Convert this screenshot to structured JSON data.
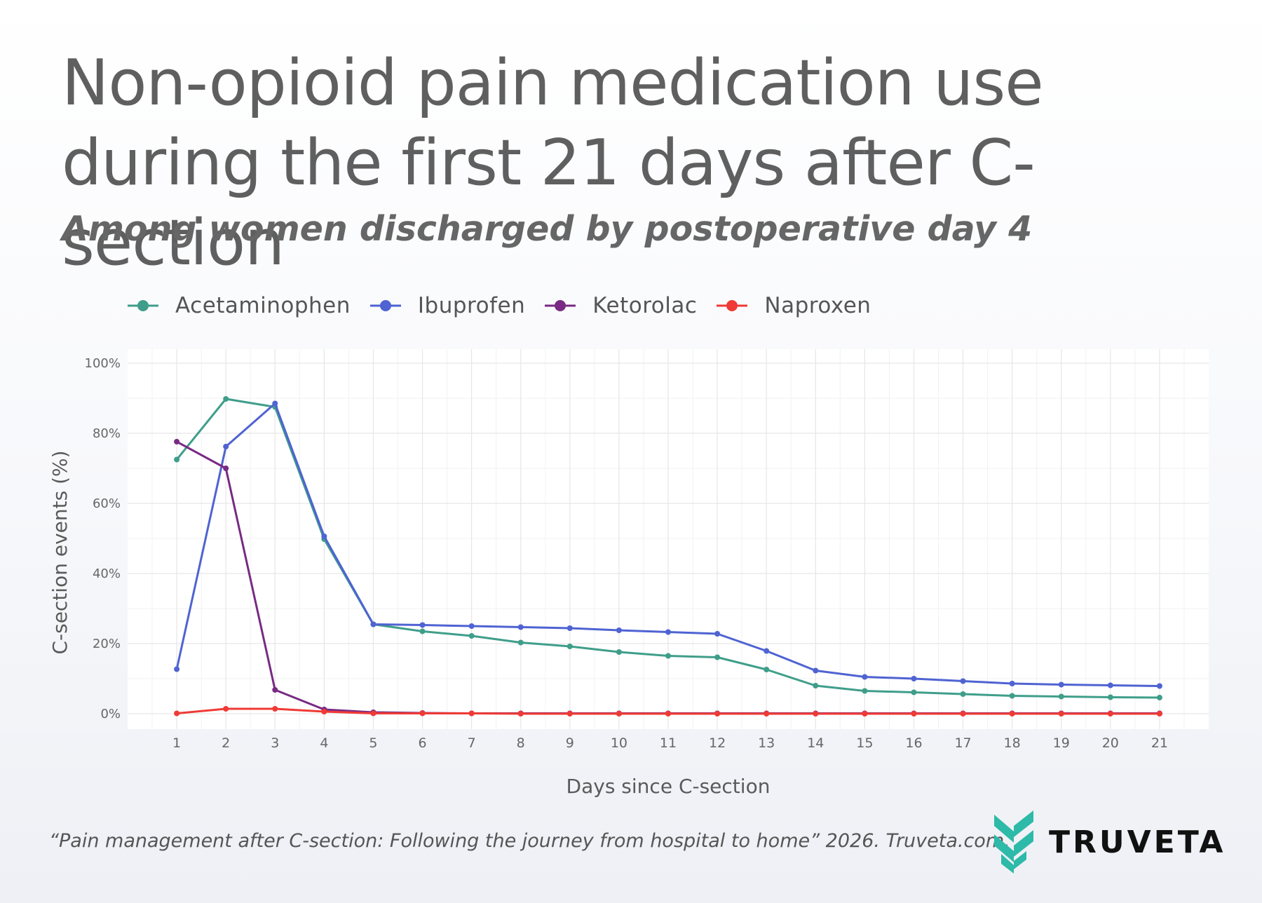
{
  "header": {
    "title": "Non-opioid pain medication use during the first 21 days after C-section",
    "subtitle": "Among women discharged by postoperative day 4"
  },
  "footer": {
    "citation": "“Pain management after C-section: Following the journey from hospital to home” 2026. Truveta.com.",
    "brand": "TRUVETA"
  },
  "colors": {
    "acetaminophen": "#3f9e8a",
    "ibuprofen": "#4f63d2",
    "ketorolac": "#782a84",
    "naproxen": "#ef3a35",
    "logo": "#2dbaa8",
    "grid": "#e6e6e6"
  },
  "chart_data": {
    "type": "line",
    "xlabel": "Days since C-section",
    "ylabel": "C-section events (%)",
    "x": [
      1,
      2,
      3,
      4,
      5,
      6,
      7,
      8,
      9,
      10,
      11,
      12,
      13,
      14,
      15,
      16,
      17,
      18,
      19,
      20,
      21
    ],
    "xlim": [
      0,
      22
    ],
    "ylim": [
      0,
      100
    ],
    "yticks": [
      0,
      20,
      40,
      60,
      80,
      100
    ],
    "ytick_labels": [
      "0%",
      "20%",
      "40%",
      "60%",
      "80%",
      "100%"
    ],
    "grid": true,
    "legend_position": "top",
    "series": [
      {
        "name": "Acetaminophen",
        "values": [
          72.5,
          89.8,
          87.5,
          49.8,
          25.5,
          23.5,
          22.2,
          20.3,
          19.2,
          17.6,
          16.5,
          16.1,
          12.6,
          8.0,
          6.5,
          6.1,
          5.6,
          5.1,
          4.9,
          4.7,
          4.6
        ]
      },
      {
        "name": "Ibuprofen",
        "values": [
          12.7,
          76.2,
          88.5,
          50.6,
          25.5,
          25.3,
          25.0,
          24.7,
          24.4,
          23.8,
          23.3,
          22.8,
          17.9,
          12.3,
          10.5,
          10.0,
          9.3,
          8.6,
          8.3,
          8.1,
          7.9
        ]
      },
      {
        "name": "Ketorolac",
        "values": [
          77.6,
          70.0,
          6.8,
          1.2,
          0.4,
          0.2,
          0.1,
          0.1,
          0.1,
          0.1,
          0.1,
          0.1,
          0.1,
          0.1,
          0.1,
          0.1,
          0.1,
          0.1,
          0.1,
          0.1,
          0.1
        ]
      },
      {
        "name": "Naproxen",
        "values": [
          0.1,
          1.4,
          1.4,
          0.6,
          0.1,
          0.1,
          0.1,
          0.0,
          0.0,
          0.0,
          0.0,
          0.0,
          0.0,
          0.0,
          0.0,
          0.0,
          0.0,
          0.0,
          0.0,
          0.0,
          0.0
        ]
      }
    ]
  }
}
